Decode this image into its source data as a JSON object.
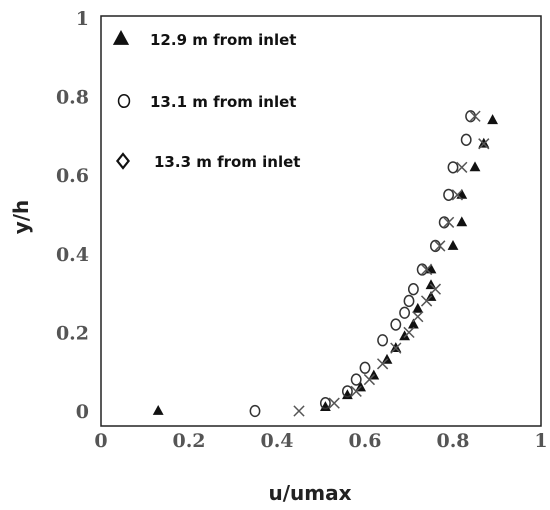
{
  "chart_data": {
    "type": "scatter",
    "title": "",
    "xlabel": "u/umax",
    "ylabel": "y/h",
    "xlim": [
      0,
      1
    ],
    "ylim": [
      0,
      1
    ],
    "xticks": [
      "0",
      "0.2",
      "0.4",
      "0.6",
      "0.8",
      "1"
    ],
    "yticks": [
      "0",
      "0.2",
      "0.4",
      "0.6",
      "0.8",
      "1"
    ],
    "grid": false,
    "legend_position": "top-left",
    "series": [
      {
        "name": "12.9 m from inlet",
        "marker": "triangle",
        "color": "#111111",
        "points": [
          [
            0.13,
            0.0
          ],
          [
            0.51,
            0.01
          ],
          [
            0.56,
            0.04
          ],
          [
            0.59,
            0.06
          ],
          [
            0.62,
            0.09
          ],
          [
            0.65,
            0.13
          ],
          [
            0.67,
            0.16
          ],
          [
            0.69,
            0.19
          ],
          [
            0.71,
            0.22
          ],
          [
            0.72,
            0.26
          ],
          [
            0.75,
            0.29
          ],
          [
            0.75,
            0.32
          ],
          [
            0.75,
            0.36
          ],
          [
            0.8,
            0.42
          ],
          [
            0.82,
            0.48
          ],
          [
            0.82,
            0.55
          ],
          [
            0.85,
            0.62
          ],
          [
            0.87,
            0.68
          ],
          [
            0.89,
            0.74
          ]
        ]
      },
      {
        "name": "13.1 m from inlet",
        "marker": "circle",
        "color": "#333333",
        "points": [
          [
            0.35,
            0.0
          ],
          [
            0.51,
            0.02
          ],
          [
            0.56,
            0.05
          ],
          [
            0.58,
            0.08
          ],
          [
            0.6,
            0.11
          ],
          [
            0.64,
            0.18
          ],
          [
            0.67,
            0.22
          ],
          [
            0.69,
            0.25
          ],
          [
            0.7,
            0.28
          ],
          [
            0.71,
            0.31
          ],
          [
            0.73,
            0.36
          ],
          [
            0.76,
            0.42
          ],
          [
            0.78,
            0.48
          ],
          [
            0.79,
            0.55
          ],
          [
            0.8,
            0.62
          ],
          [
            0.83,
            0.69
          ],
          [
            0.84,
            0.75
          ]
        ]
      },
      {
        "name": "13.3 m from inlet",
        "marker": "cross",
        "color": "#555555",
        "points": [
          [
            0.45,
            0.0
          ],
          [
            0.53,
            0.02
          ],
          [
            0.58,
            0.05
          ],
          [
            0.61,
            0.08
          ],
          [
            0.64,
            0.12
          ],
          [
            0.67,
            0.16
          ],
          [
            0.7,
            0.2
          ],
          [
            0.72,
            0.24
          ],
          [
            0.74,
            0.28
          ],
          [
            0.76,
            0.31
          ],
          [
            0.74,
            0.36
          ],
          [
            0.77,
            0.42
          ],
          [
            0.79,
            0.48
          ],
          [
            0.81,
            0.55
          ],
          [
            0.82,
            0.62
          ],
          [
            0.87,
            0.68
          ],
          [
            0.85,
            0.75
          ]
        ]
      }
    ]
  }
}
